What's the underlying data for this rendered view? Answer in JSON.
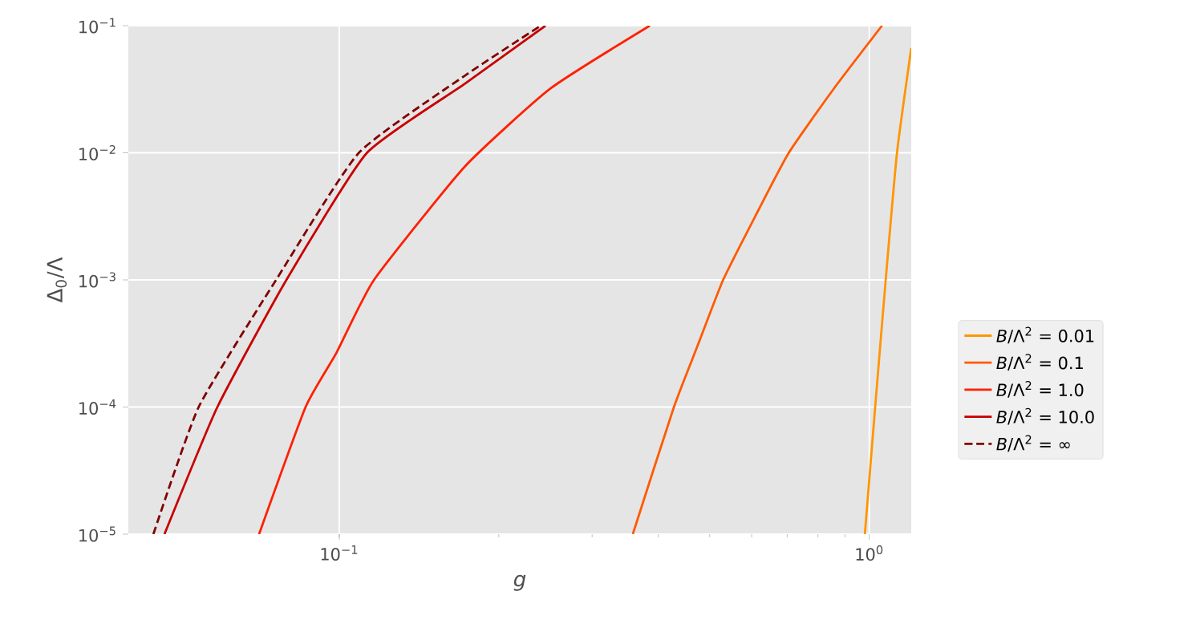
{
  "chart_data": {
    "type": "line",
    "xlabel": "g",
    "ylabel": "Δ$_{0}$/Λ",
    "log": "xy",
    "xlim": [
      0.04,
      1.2
    ],
    "ylim": [
      1e-05,
      0.1
    ],
    "xticks": [
      {
        "value": 0.1,
        "label": "10$^{−1}$"
      },
      {
        "value": 1,
        "label": "10$^{0}$"
      }
    ],
    "yticks": [
      {
        "value": 1e-05,
        "label": "10$^{−5}$"
      },
      {
        "value": 0.0001,
        "label": "10$^{−4}$"
      },
      {
        "value": 0.001,
        "label": "10$^{−3}$"
      },
      {
        "value": 0.01,
        "label": "10$^{−2}$"
      },
      {
        "value": 0.1,
        "label": "10$^{−1}$"
      }
    ],
    "grid": true,
    "legend": "right",
    "series": [
      {
        "name": "*B*/Λ$^{2}$ =  0.01",
        "color": "#ff9500",
        "line_style": "solid",
        "x": [
          0.981,
          1.026,
          1.074,
          1.128,
          1.2
        ],
        "values": [
          1e-05,
          0.0001,
          0.001,
          0.01,
          0.0666
        ]
      },
      {
        "name": "*B*/Λ$^{2}$ =  0.1",
        "color": "#ff5a00",
        "line_style": "solid",
        "x": [
          0.358,
          0.428,
          0.475,
          0.53,
          0.609,
          0.705,
          0.858,
          1.057
        ],
        "values": [
          1e-05,
          0.0001,
          0.000308,
          0.001,
          0.00315,
          0.01,
          0.0321,
          0.1
        ]
      },
      {
        "name": "*B*/Λ$^{2}$ =  1.0",
        "color": "#ff2000",
        "line_style": "solid",
        "x": [
          0.0706,
          0.0864,
          0.0988,
          0.1163,
          0.1724,
          0.2505,
          0.3855
        ],
        "values": [
          1e-05,
          0.0001,
          0.000267,
          0.001,
          0.00776,
          0.0321,
          0.1
        ]
      },
      {
        "name": "*B*/Λ$^{2}$ =  10.0",
        "color": "#c80000",
        "line_style": "solid",
        "x": [
          0.0468,
          0.0589,
          0.0795,
          0.1128,
          0.1724,
          0.245
        ],
        "values": [
          1e-05,
          0.0001,
          0.001,
          0.01,
          0.0348,
          0.1
        ]
      },
      {
        "name": "*B*/Λ$^{2}$ = ∞",
        "color": "#800000",
        "line_style": "dashed",
        "x": [
          0.0446,
          0.0543,
          0.076,
          0.1089,
          0.1724,
          0.24
        ],
        "values": [
          1e-05,
          0.0001,
          0.001,
          0.01,
          0.0403,
          0.1
        ]
      }
    ]
  }
}
